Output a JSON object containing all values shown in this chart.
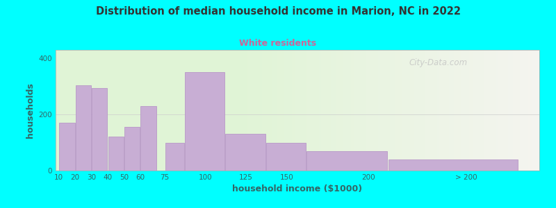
{
  "title": "Distribution of median household income in Marion, NC in 2022",
  "subtitle": "White residents",
  "xlabel": "household income ($1000)",
  "ylabel": "households",
  "background_outer": "#00FFFF",
  "background_inner_right": "#f0f0e8",
  "background_inner_left": "#dff0d8",
  "bar_color": "#c8aed4",
  "bar_edge_color": "#b898c8",
  "title_color": "#333333",
  "subtitle_color": "#cc6699",
  "axis_label_color": "#336666",
  "tick_label_color": "#336666",
  "values": [
    170,
    305,
    295,
    120,
    155,
    230,
    100,
    350,
    130,
    100,
    70,
    40
  ],
  "bar_lefts": [
    10,
    20,
    30,
    40,
    50,
    60,
    75,
    87,
    112,
    137,
    162,
    212
  ],
  "bar_widths": [
    10,
    10,
    10,
    10,
    10,
    10,
    12,
    25,
    25,
    25,
    50,
    80
  ],
  "xlim": [
    8,
    305
  ],
  "ylim": [
    0,
    430
  ],
  "yticks": [
    0,
    200,
    400
  ],
  "xtick_positions": [
    10,
    20,
    30,
    40,
    50,
    60,
    75,
    100,
    125,
    150,
    200,
    260
  ],
  "xtick_labels": [
    "10",
    "20",
    "30",
    "40",
    "50",
    "60",
    "75",
    "100",
    "125",
    "150",
    "200",
    "> 200"
  ],
  "green_bg_xlim": [
    8,
    120
  ],
  "green_fade_xlim": [
    120,
    305
  ],
  "watermark": "City-Data.com"
}
